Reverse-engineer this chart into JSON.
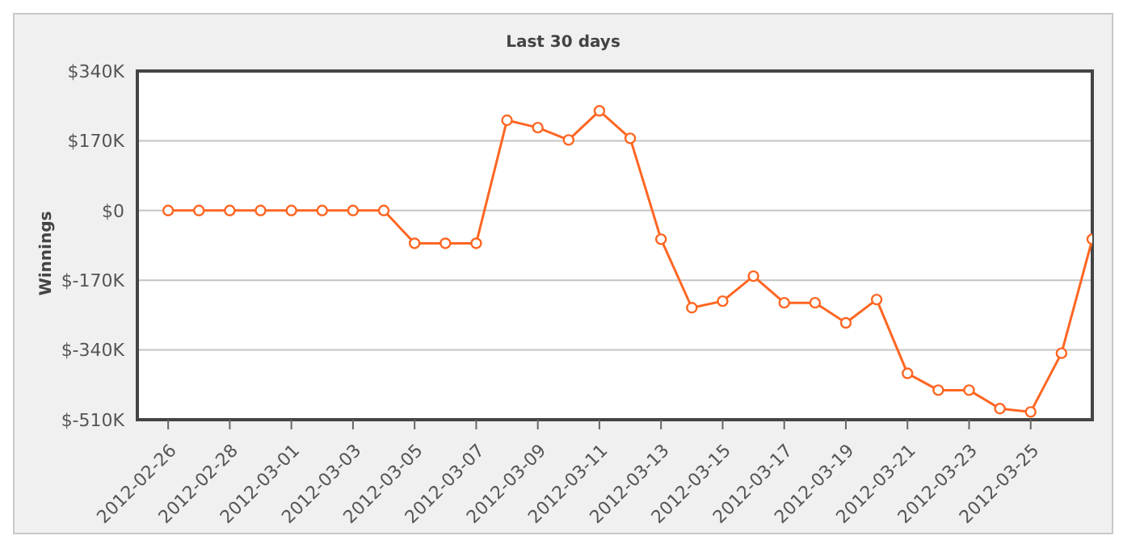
{
  "chart_data": {
    "type": "line",
    "title": "Last 30 days",
    "ylabel": "Winnings",
    "x": [
      "2012-02-26",
      "2012-02-27",
      "2012-02-28",
      "2012-02-29",
      "2012-03-01",
      "2012-03-02",
      "2012-03-03",
      "2012-03-04",
      "2012-03-05",
      "2012-03-06",
      "2012-03-07",
      "2012-03-08",
      "2012-03-09",
      "2012-03-10",
      "2012-03-11",
      "2012-03-12",
      "2012-03-13",
      "2012-03-14",
      "2012-03-15",
      "2012-03-16",
      "2012-03-17",
      "2012-03-18",
      "2012-03-19",
      "2012-03-20",
      "2012-03-21",
      "2012-03-22",
      "2012-03-23",
      "2012-03-24",
      "2012-03-25",
      "2012-03-26",
      "2012-03-27"
    ],
    "series": [
      {
        "color": "#ff6622",
        "values": [
          0,
          0,
          0,
          0,
          0,
          0,
          0,
          0,
          -80,
          -80,
          -80,
          220,
          202,
          172,
          243,
          176,
          -70,
          -237,
          -221,
          -160,
          -225,
          -225,
          -274,
          -217,
          -397,
          -438,
          -438,
          -483,
          -491,
          -348,
          -70
        ]
      }
    ],
    "xlim": [
      "2012-02-25",
      "2012-03-27"
    ],
    "xticks": [
      "2012-02-26",
      "2012-02-28",
      "2012-03-01",
      "2012-03-03",
      "2012-03-05",
      "2012-03-07",
      "2012-03-09",
      "2012-03-11",
      "2012-03-13",
      "2012-03-15",
      "2012-03-17",
      "2012-03-19",
      "2012-03-21",
      "2012-03-23",
      "2012-03-25"
    ],
    "ylim": [
      -510,
      340
    ],
    "yticks": [
      {
        "value": 340,
        "label": "$340K"
      },
      {
        "value": 170,
        "label": "$170K"
      },
      {
        "value": 0,
        "label": "$0"
      },
      {
        "value": -170,
        "label": "$-170K"
      },
      {
        "value": -340,
        "label": "$-340K"
      },
      {
        "value": -510,
        "label": "$-510K"
      }
    ],
    "grid": "y",
    "marker": "circle",
    "line_style": "solid",
    "legend": false
  }
}
